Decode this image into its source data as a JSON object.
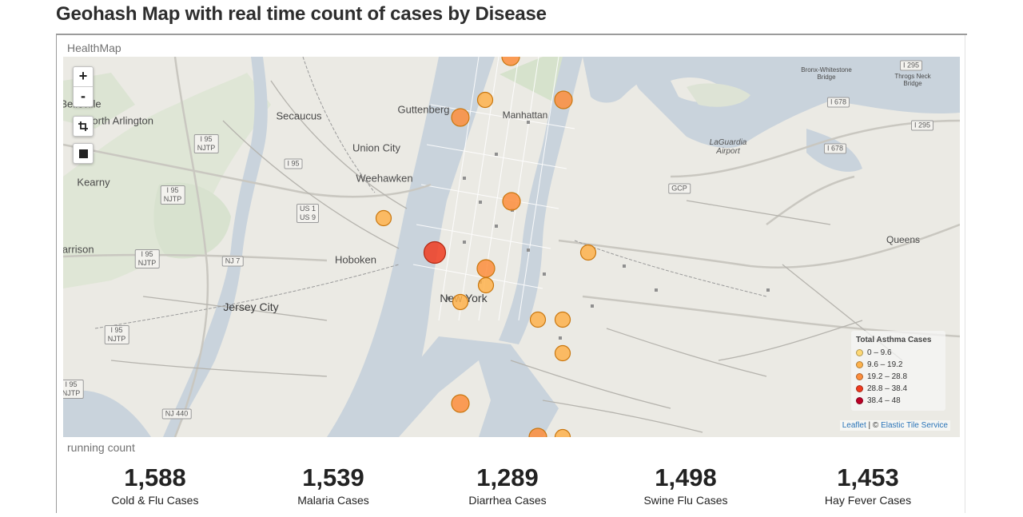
{
  "title": "Geohash Map with real time count of cases by Disease",
  "map_panel": {
    "label": "HealthMap",
    "zoom_in": "+",
    "zoom_out": "-",
    "legend": {
      "title": "Total Asthma Cases",
      "ranges": [
        {
          "label": "0 – 9.6",
          "color": "#fed976"
        },
        {
          "label": "9.6 – 19.2",
          "color": "#feb24c"
        },
        {
          "label": "19.2 – 28.8",
          "color": "#fd8d3c"
        },
        {
          "label": "28.8 – 38.4",
          "color": "#f03b20"
        },
        {
          "label": "38.4 – 48",
          "color": "#bd0026"
        }
      ]
    },
    "attribution": {
      "leaflet": "Leaflet",
      "separator": " | © ",
      "service": "Elastic Tile Service"
    },
    "places": {
      "guttenberg": "Guttenberg",
      "secaucus": "Secaucus",
      "union_city": "Union City",
      "weehawken": "Weehawken",
      "hoboken": "Hoboken",
      "jersey_city": "Jersey City",
      "new_york": "New York",
      "manhattan": "Manhattan",
      "north_arlington": "North Arlington",
      "belleville": "Belleville",
      "kearny": "Kearny",
      "harrison": "Harrison",
      "queens": "Queens",
      "laguardia": "LaGuardia\nAirport",
      "bronx_bridge": "Bronx-Whitestone\nBridge",
      "throgs_bridge": "Throgs Neck\nBridge",
      "gcp": "GCP"
    },
    "shields": {
      "i95_a": "I 95\nNJTP",
      "i95_b": "I 95",
      "i95_c": "I 95\nNJTP",
      "i95_d": "I 95\nNJTP",
      "i95_e": "I 95\nNJTP",
      "i95_f": "I 95\nNJTP",
      "us1": "US 1\nUS 9",
      "nj7": "NJ 7",
      "nj440": "NJ 440",
      "i678_a": "I 678",
      "i678_b": "I 678",
      "i295_a": "I 295",
      "i295_b": "I 295"
    }
  },
  "running_count": {
    "label": "running count",
    "metrics": [
      {
        "value": "1,588",
        "label": "Cold & Flu Cases"
      },
      {
        "value": "1,539",
        "label": "Malaria Cases"
      },
      {
        "value": "1,289",
        "label": "Diarrhea Cases"
      },
      {
        "value": "1,498",
        "label": "Swine Flu Cases"
      },
      {
        "value": "1,453",
        "label": "Hay Fever Cases"
      }
    ]
  }
}
